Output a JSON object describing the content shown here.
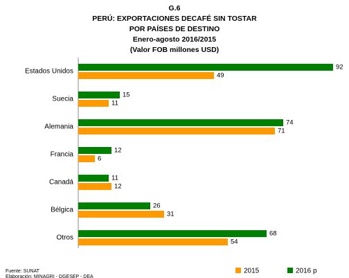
{
  "chart_data": {
    "type": "hbar",
    "title": [
      "G.6",
      "PERÚ: EXPORTACIONES DECAFÉ SIN TOSTAR",
      "POR PAÍSES DE DESTINO",
      "Enero-agosto 2016/2015",
      "(Valor FOB millones USD)"
    ],
    "categories": [
      "Estados Unidos",
      "Suecia",
      "Alemania",
      "Francia",
      "Canadá",
      "Bélgica",
      "Otros"
    ],
    "series": [
      {
        "name": "2015",
        "color": "#ff9900",
        "values": [
          49,
          11,
          71,
          6,
          12,
          31,
          54
        ]
      },
      {
        "name": "2016 p",
        "color": "#008000",
        "values": [
          92,
          15,
          74,
          12,
          11,
          26,
          68
        ]
      }
    ],
    "legend": "bottom-right",
    "notes": [
      "Fuente: SUNAT",
      "Elaboración: MINAGRI - DGESEP - DEA"
    ]
  }
}
